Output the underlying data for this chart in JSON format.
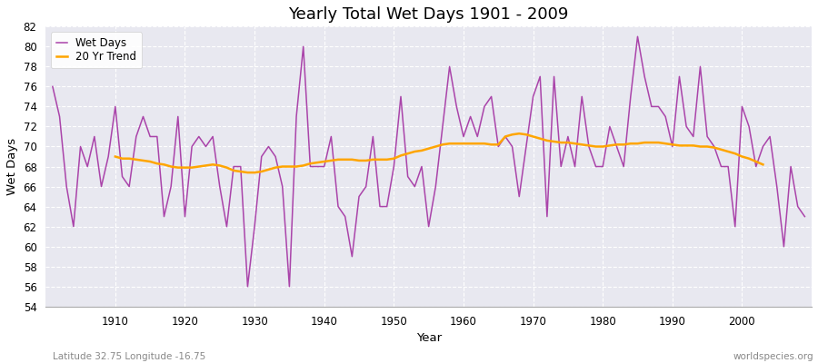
{
  "title": "Yearly Total Wet Days 1901 - 2009",
  "xlabel": "Year",
  "ylabel": "Wet Days",
  "subtitle_left": "Latitude 32.75 Longitude -16.75",
  "subtitle_right": "worldspecies.org",
  "wet_days_color": "#AA44AA",
  "trend_color": "#FFA500",
  "background_color": "#E8E8F0",
  "ylim": [
    54,
    82
  ],
  "yticks": [
    54,
    56,
    58,
    60,
    62,
    64,
    66,
    68,
    70,
    72,
    74,
    76,
    78,
    80,
    82
  ],
  "xticks": [
    1910,
    1920,
    1930,
    1940,
    1950,
    1960,
    1970,
    1980,
    1990,
    2000
  ],
  "years": [
    1901,
    1902,
    1903,
    1904,
    1905,
    1906,
    1907,
    1908,
    1909,
    1910,
    1911,
    1912,
    1913,
    1914,
    1915,
    1916,
    1917,
    1918,
    1919,
    1920,
    1921,
    1922,
    1923,
    1924,
    1925,
    1926,
    1927,
    1928,
    1929,
    1930,
    1931,
    1932,
    1933,
    1934,
    1935,
    1936,
    1937,
    1938,
    1939,
    1940,
    1941,
    1942,
    1943,
    1944,
    1945,
    1946,
    1947,
    1948,
    1949,
    1950,
    1951,
    1952,
    1953,
    1954,
    1955,
    1956,
    1957,
    1958,
    1959,
    1960,
    1961,
    1962,
    1963,
    1964,
    1965,
    1966,
    1967,
    1968,
    1969,
    1970,
    1971,
    1972,
    1973,
    1974,
    1975,
    1976,
    1977,
    1978,
    1979,
    1980,
    1981,
    1982,
    1983,
    1984,
    1985,
    1986,
    1987,
    1988,
    1989,
    1990,
    1991,
    1992,
    1993,
    1994,
    1995,
    1996,
    1997,
    1998,
    1999,
    2000,
    2001,
    2002,
    2003,
    2004,
    2005,
    2006,
    2007,
    2008,
    2009
  ],
  "wet_days": [
    76,
    73,
    66,
    62,
    70,
    68,
    71,
    66,
    69,
    74,
    67,
    66,
    71,
    73,
    71,
    71,
    63,
    66,
    73,
    63,
    70,
    71,
    70,
    71,
    66,
    62,
    68,
    68,
    56,
    62,
    69,
    70,
    69,
    66,
    56,
    73,
    80,
    68,
    68,
    68,
    71,
    64,
    63,
    59,
    65,
    66,
    71,
    64,
    64,
    68,
    75,
    67,
    66,
    68,
    62,
    66,
    72,
    78,
    74,
    71,
    73,
    71,
    74,
    75,
    70,
    71,
    70,
    65,
    70,
    75,
    77,
    63,
    77,
    68,
    71,
    68,
    75,
    70,
    68,
    68,
    72,
    70,
    68,
    75,
    81,
    77,
    74,
    74,
    73,
    70,
    77,
    72,
    71,
    78,
    71,
    70,
    68,
    68,
    62,
    74,
    72,
    68,
    70,
    71,
    66,
    60,
    68,
    64,
    63
  ],
  "trend_years": [
    1910,
    1911,
    1912,
    1913,
    1914,
    1915,
    1916,
    1917,
    1918,
    1919,
    1920,
    1921,
    1922,
    1923,
    1924,
    1925,
    1926,
    1927,
    1928,
    1929,
    1930,
    1931,
    1932,
    1933,
    1934,
    1935,
    1936,
    1937,
    1938,
    1939,
    1940,
    1941,
    1942,
    1943,
    1944,
    1945,
    1946,
    1947,
    1948,
    1949,
    1950,
    1951,
    1952,
    1953,
    1954,
    1955,
    1956,
    1957,
    1958,
    1959,
    1960,
    1961,
    1962,
    1963,
    1964,
    1965,
    1966,
    1967,
    1968,
    1969,
    1970,
    1971,
    1972,
    1973,
    1974,
    1975,
    1976,
    1977,
    1978,
    1979,
    1980,
    1981,
    1982,
    1983,
    1984,
    1985,
    1986,
    1987,
    1988,
    1989,
    1990,
    1991,
    1992,
    1993,
    1994,
    1995,
    1996,
    1997,
    1998,
    1999,
    2000,
    2001,
    2002,
    2003
  ],
  "trend_values": [
    69.0,
    68.8,
    68.8,
    68.7,
    68.6,
    68.5,
    68.3,
    68.2,
    68.0,
    67.9,
    67.9,
    67.9,
    68.0,
    68.1,
    68.2,
    68.1,
    67.9,
    67.6,
    67.5,
    67.4,
    67.4,
    67.5,
    67.7,
    67.9,
    68.0,
    68.0,
    68.0,
    68.1,
    68.3,
    68.4,
    68.5,
    68.6,
    68.7,
    68.7,
    68.7,
    68.6,
    68.6,
    68.7,
    68.7,
    68.7,
    68.8,
    69.1,
    69.3,
    69.5,
    69.6,
    69.8,
    70.0,
    70.2,
    70.3,
    70.3,
    70.3,
    70.3,
    70.3,
    70.3,
    70.2,
    70.2,
    71.0,
    71.2,
    71.3,
    71.2,
    71.0,
    70.8,
    70.6,
    70.5,
    70.4,
    70.4,
    70.3,
    70.2,
    70.1,
    70.0,
    70.0,
    70.1,
    70.2,
    70.2,
    70.3,
    70.3,
    70.4,
    70.4,
    70.4,
    70.3,
    70.2,
    70.1,
    70.1,
    70.1,
    70.0,
    70.0,
    69.9,
    69.7,
    69.5,
    69.3,
    69.0,
    68.8,
    68.5,
    68.2
  ]
}
